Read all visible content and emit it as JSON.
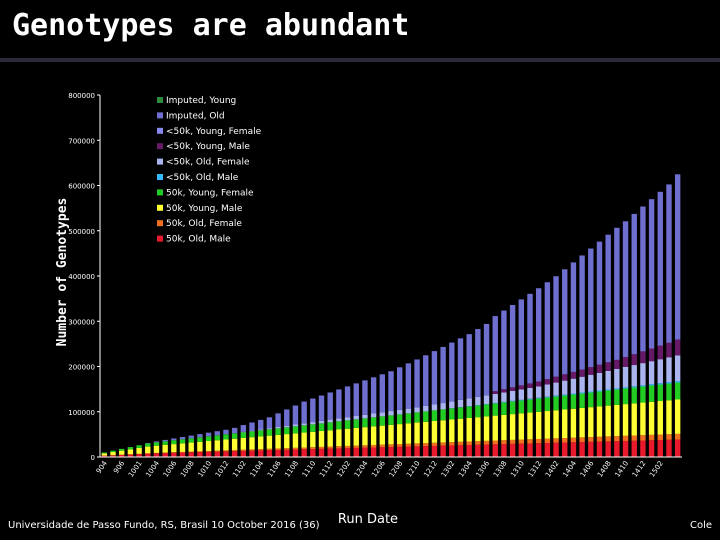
{
  "slide": {
    "title": "Genotypes are abundant",
    "footer_left": "Universidade de Passo Fundo, RS, Brasil 10 October 2016 (36)",
    "footer_right": "Cole"
  },
  "chart_data": {
    "type": "bar",
    "stacked": true,
    "ylabel": "Number of Genotypes",
    "xlabel": "Run Date",
    "ylim": [
      0,
      800000
    ],
    "yticks": [
      "0",
      "100000",
      "200000",
      "300000",
      "400000",
      "500000",
      "600000",
      "700000",
      "800000"
    ],
    "grid": false,
    "legend_position": "top-left",
    "categories": [
      "0904",
      "0906",
      "0908",
      "0910",
      "0912",
      "1001",
      "1002",
      "1003",
      "1004",
      "1005",
      "1006",
      "1007",
      "1008",
      "1009",
      "1010",
      "1011",
      "1012",
      "1101",
      "1102",
      "1103",
      "1104",
      "1105",
      "1106",
      "1107",
      "1108",
      "1109",
      "1110",
      "1111",
      "1112",
      "1201",
      "1202",
      "1203",
      "1204",
      "1205",
      "1206",
      "1207",
      "1208",
      "1209",
      "1210",
      "1211",
      "1212",
      "1301",
      "1302",
      "1303",
      "1304",
      "1305",
      "1306",
      "1307",
      "1308",
      "1309",
      "1310",
      "1311",
      "1312",
      "1401",
      "1402",
      "1403",
      "1404",
      "1405",
      "1406",
      "1407",
      "1408",
      "1409",
      "1410",
      "1411",
      "1412",
      "1501",
      "1502"
    ],
    "xtick_labels": [
      "904",
      "906",
      "1001",
      "1004",
      "1006",
      "1008",
      "1010",
      "1012",
      "1102",
      "1104",
      "1106",
      "1108",
      "1110",
      "1112",
      "1202",
      "1204",
      "1206",
      "1208",
      "1210",
      "1212",
      "1302",
      "1304",
      "1306",
      "1308",
      "1310",
      "1312",
      "1402",
      "1404",
      "1406",
      "1408",
      "1410",
      "1412",
      "1502"
    ],
    "series": [
      {
        "name": "50k, Old, Male",
        "color": "#e8192c",
        "values": [
          3000,
          4000,
          5000,
          6000,
          7000,
          8000,
          8500,
          9000,
          9500,
          10000,
          10500,
          11000,
          11500,
          12000,
          12500,
          13000,
          13500,
          14000,
          14500,
          15000,
          15500,
          16000,
          16500,
          17000,
          17500,
          18000,
          18500,
          19000,
          19500,
          20000,
          20500,
          21000,
          21500,
          22000,
          22500,
          23000,
          23500,
          24000,
          24500,
          25000,
          25500,
          26000,
          26500,
          27000,
          27500,
          28000,
          28500,
          29000,
          29500,
          30000,
          30500,
          31000,
          31500,
          32000,
          32500,
          33000,
          33500,
          34000,
          34500,
          35000,
          35500,
          36000,
          36500,
          37000,
          37500,
          38000,
          38500
        ]
      },
      {
        "name": "50k, Old, Female",
        "color": "#f07020",
        "values": [
          0,
          0,
          0,
          0,
          0,
          0,
          500,
          800,
          1000,
          1200,
          1400,
          1600,
          1800,
          2000,
          2200,
          2400,
          2600,
          2800,
          3000,
          3200,
          3400,
          3600,
          3800,
          4000,
          4200,
          4400,
          4600,
          4800,
          5000,
          5200,
          5400,
          5600,
          5800,
          6000,
          6200,
          6400,
          6600,
          6800,
          7000,
          7200,
          7400,
          7600,
          7800,
          8000,
          8200,
          8400,
          8600,
          8800,
          9000,
          9200,
          9400,
          9600,
          9800,
          10000,
          10200,
          10400,
          10600,
          10800,
          11000,
          11200,
          11400,
          11600,
          11800,
          12000,
          12200,
          12400,
          12600
        ]
      },
      {
        "name": "50k, Young, Male",
        "color": "#ffff33",
        "values": [
          5000,
          7000,
          9000,
          11000,
          13000,
          15000,
          16000,
          17000,
          18000,
          19000,
          20000,
          21000,
          22000,
          23000,
          24000,
          25000,
          26000,
          27000,
          28000,
          29000,
          30000,
          31000,
          32000,
          33000,
          34000,
          35000,
          36000,
          37000,
          38000,
          39000,
          40000,
          41000,
          42000,
          43000,
          44000,
          45000,
          46000,
          47000,
          48000,
          49000,
          50000,
          51000,
          52000,
          53000,
          54000,
          55000,
          56000,
          57000,
          58000,
          59000,
          60000,
          61000,
          62000,
          63000,
          64000,
          65000,
          66000,
          67000,
          68000,
          69000,
          70000,
          71000,
          72000,
          73000,
          74000,
          75000,
          76000
        ]
      },
      {
        "name": "50k, Young, Female",
        "color": "#22cc22",
        "values": [
          2000,
          3000,
          4000,
          5000,
          6000,
          7000,
          7500,
          8000,
          8500,
          9000,
          9500,
          10000,
          10500,
          11000,
          11500,
          12000,
          12500,
          13000,
          13500,
          14000,
          14500,
          15000,
          15500,
          16000,
          16500,
          17000,
          17500,
          18000,
          18500,
          19000,
          19500,
          20000,
          20500,
          21000,
          21500,
          22000,
          22500,
          23000,
          23500,
          24000,
          24500,
          25000,
          25500,
          26000,
          26500,
          27000,
          27500,
          28000,
          28500,
          29000,
          29500,
          30000,
          30500,
          31000,
          31500,
          32000,
          32500,
          33000,
          33500,
          34000,
          34500,
          35000,
          35500,
          36000,
          36500,
          37000,
          37500
        ]
      },
      {
        "name": "<50k, Old, Male",
        "color": "#33bbff",
        "values": [
          0,
          0,
          0,
          0,
          0,
          0,
          0,
          0,
          0,
          0,
          0,
          0,
          0,
          0,
          0,
          0,
          0,
          0,
          0,
          0,
          0,
          0,
          0,
          0,
          0,
          0,
          0,
          0,
          0,
          0,
          0,
          0,
          0,
          0,
          0,
          0,
          0,
          0,
          0,
          0,
          500,
          600,
          700,
          800,
          900,
          1000,
          1100,
          1200,
          1300,
          1400,
          1500,
          1600,
          1700,
          1800,
          1900,
          2000,
          2100,
          2200,
          2300,
          2400,
          2500,
          2600,
          2700,
          2800,
          2900,
          3000,
          3100
        ]
      },
      {
        "name": "<50k, Old, Female",
        "color": "#aab4ee",
        "values": [
          0,
          0,
          0,
          0,
          0,
          0,
          0,
          0,
          0,
          0,
          0,
          0,
          0,
          0,
          0,
          0,
          1000,
          1500,
          2000,
          2500,
          3000,
          3500,
          4000,
          4500,
          5000,
          5500,
          6000,
          6500,
          7000,
          7500,
          8000,
          8500,
          9000,
          9500,
          10000,
          10500,
          11000,
          12000,
          13000,
          14000,
          15000,
          16000,
          17000,
          18000,
          19000,
          20000,
          21000,
          22000,
          23000,
          24000,
          25000,
          27000,
          29000,
          31000,
          33000,
          35000,
          37000,
          39000,
          41000,
          43000,
          45000,
          47000,
          49000,
          51000,
          53000,
          55000,
          57000
        ]
      },
      {
        "name": "<50k, Young, Male",
        "color": "#661a66",
        "values": [
          0,
          0,
          0,
          0,
          0,
          0,
          0,
          0,
          0,
          0,
          0,
          0,
          0,
          0,
          0,
          0,
          0,
          0,
          0,
          0,
          0,
          0,
          0,
          0,
          0,
          0,
          0,
          0,
          0,
          0,
          0,
          0,
          0,
          0,
          0,
          0,
          0,
          0,
          0,
          0,
          0,
          0,
          0,
          0,
          0,
          6000,
          7000,
          8000,
          9000,
          10000,
          11000,
          12000,
          13000,
          14000,
          15000,
          16000,
          17000,
          18000,
          19000,
          20000,
          22000,
          24000,
          26000,
          28000,
          30000,
          32000,
          35000
        ]
      },
      {
        "name": "<50k, Young, Female",
        "color": "#8888ee",
        "values": [
          0,
          0,
          0,
          0,
          0,
          0,
          0,
          0,
          0,
          0,
          0,
          0,
          0,
          0,
          0,
          0,
          0,
          0,
          0,
          0,
          0,
          0,
          0,
          0,
          0,
          0,
          0,
          0,
          0,
          0,
          0,
          0,
          0,
          0,
          0,
          0,
          0,
          0,
          0,
          0,
          0,
          0,
          0,
          0,
          0,
          0,
          0,
          0,
          0,
          0,
          0,
          0,
          0,
          0,
          0,
          0,
          0,
          0,
          0,
          0,
          0,
          0,
          0,
          0,
          0,
          0,
          0
        ]
      },
      {
        "name": "Imputed, Old",
        "color": "#6f6fd0",
        "values": [
          0,
          0,
          0,
          0,
          0,
          1000,
          2000,
          3000,
          4000,
          5000,
          6000,
          7000,
          8000,
          9000,
          10000,
          12000,
          15000,
          18000,
          21000,
          24000,
          30000,
          36000,
          42000,
          48000,
          52000,
          56000,
          60000,
          64000,
          68000,
          72000,
          76000,
          80000,
          84000,
          88000,
          94000,
          100000,
          106000,
          112000,
          118000,
          124000,
          130000,
          136000,
          142000,
          150000,
          158000,
          166000,
          174000,
          182000,
          190000,
          198000,
          206000,
          214000,
          222000,
          232000,
          242000,
          252000,
          262000,
          272000,
          282000,
          292000,
          300000,
          310000,
          320000,
          330000,
          340000,
          350000,
          365000
        ]
      },
      {
        "name": "Imputed, Young",
        "color": "#2f8a3f",
        "values": [
          0,
          0,
          0,
          0,
          0,
          0,
          0,
          0,
          0,
          0,
          0,
          0,
          0,
          0,
          0,
          0,
          0,
          0,
          0,
          0,
          0,
          0,
          0,
          0,
          0,
          0,
          0,
          0,
          0,
          0,
          0,
          0,
          0,
          0,
          0,
          0,
          0,
          0,
          0,
          0,
          0,
          0,
          0,
          0,
          0,
          0,
          0,
          0,
          0,
          0,
          0,
          0,
          0,
          0,
          0,
          0,
          0,
          0,
          0,
          0,
          0,
          0,
          0,
          0,
          0,
          0,
          0
        ]
      }
    ],
    "legend_order": [
      "Imputed, Young",
      "Imputed, Old",
      "<50k, Young, Female",
      "<50k, Young, Male",
      "<50k, Old, Female",
      "<50k, Old, Male",
      "50k, Young, Female",
      "50k, Young, Male",
      "50k, Old, Female",
      "50k, Old, Male"
    ]
  }
}
